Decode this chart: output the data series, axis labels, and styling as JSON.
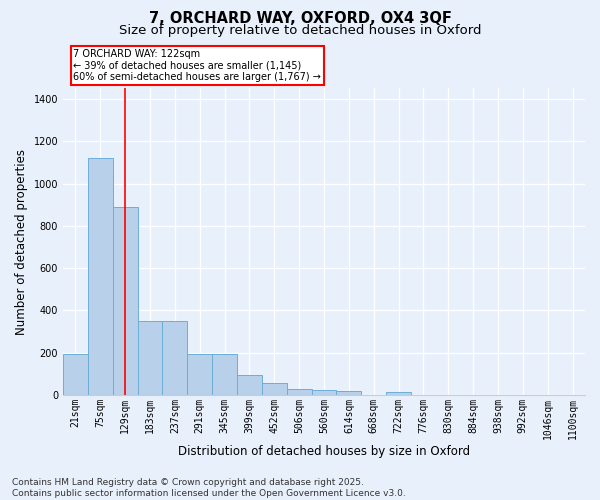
{
  "title_line1": "7, ORCHARD WAY, OXFORD, OX4 3QF",
  "title_line2": "Size of property relative to detached houses in Oxford",
  "xlabel": "Distribution of detached houses by size in Oxford",
  "ylabel": "Number of detached properties",
  "categories": [
    "21sqm",
    "75sqm",
    "129sqm",
    "183sqm",
    "237sqm",
    "291sqm",
    "345sqm",
    "399sqm",
    "452sqm",
    "506sqm",
    "560sqm",
    "614sqm",
    "668sqm",
    "722sqm",
    "776sqm",
    "830sqm",
    "884sqm",
    "938sqm",
    "992sqm",
    "1046sqm",
    "1100sqm"
  ],
  "values": [
    193,
    1120,
    888,
    352,
    352,
    196,
    196,
    93,
    55,
    27,
    22,
    17,
    0,
    16,
    0,
    0,
    0,
    0,
    0,
    0,
    0
  ],
  "bar_color": "#b8d0ea",
  "bar_edge_color": "#6aaed6",
  "vline_x": 2.0,
  "vline_color": "red",
  "annotation_text": "7 ORCHARD WAY: 122sqm\n← 39% of detached houses are smaller (1,145)\n60% of semi-detached houses are larger (1,767) →",
  "annotation_box_color": "white",
  "annotation_box_edge_color": "red",
  "ylim": [
    0,
    1450
  ],
  "yticks": [
    0,
    200,
    400,
    600,
    800,
    1000,
    1200,
    1400
  ],
  "footnote": "Contains HM Land Registry data © Crown copyright and database right 2025.\nContains public sector information licensed under the Open Government Licence v3.0.",
  "bg_color": "#e8f0fb",
  "grid_color": "white",
  "title_fontsize": 10.5,
  "subtitle_fontsize": 9.5,
  "tick_fontsize": 7,
  "label_fontsize": 8.5,
  "footnote_fontsize": 6.5
}
